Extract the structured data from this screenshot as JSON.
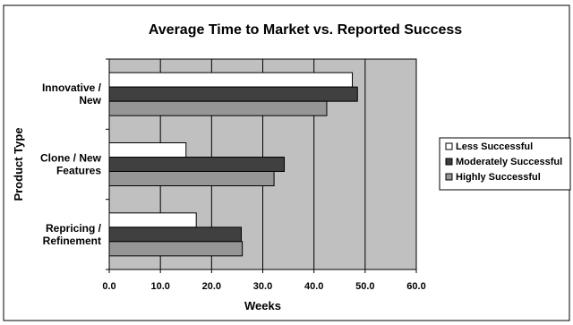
{
  "chart_data": {
    "type": "bar",
    "orientation": "horizontal",
    "title": "Average Time to Market vs. Reported Success",
    "xlabel": "Weeks",
    "ylabel": "Product Type",
    "xlim": [
      0,
      60
    ],
    "xticks": [
      "0.0",
      "10.0",
      "20.0",
      "30.0",
      "40.0",
      "50.0",
      "60.0"
    ],
    "grid": true,
    "legend_position": "right",
    "categories": [
      [
        "Innovative /",
        "New"
      ],
      [
        "Clone / New",
        "Features"
      ],
      [
        "Repricing /",
        "Refinement"
      ]
    ],
    "series": [
      {
        "name": "Less Successful",
        "color": "#ffffff",
        "values": [
          47.5,
          15.0,
          17.0
        ]
      },
      {
        "name": "Moderately Successful",
        "color": "#404040",
        "values": [
          48.5,
          34.2,
          25.8
        ]
      },
      {
        "name": "Highly Successful",
        "color": "#969696",
        "values": [
          42.5,
          32.2,
          26.0
        ]
      }
    ],
    "plot_background": "#c0c0c0"
  }
}
